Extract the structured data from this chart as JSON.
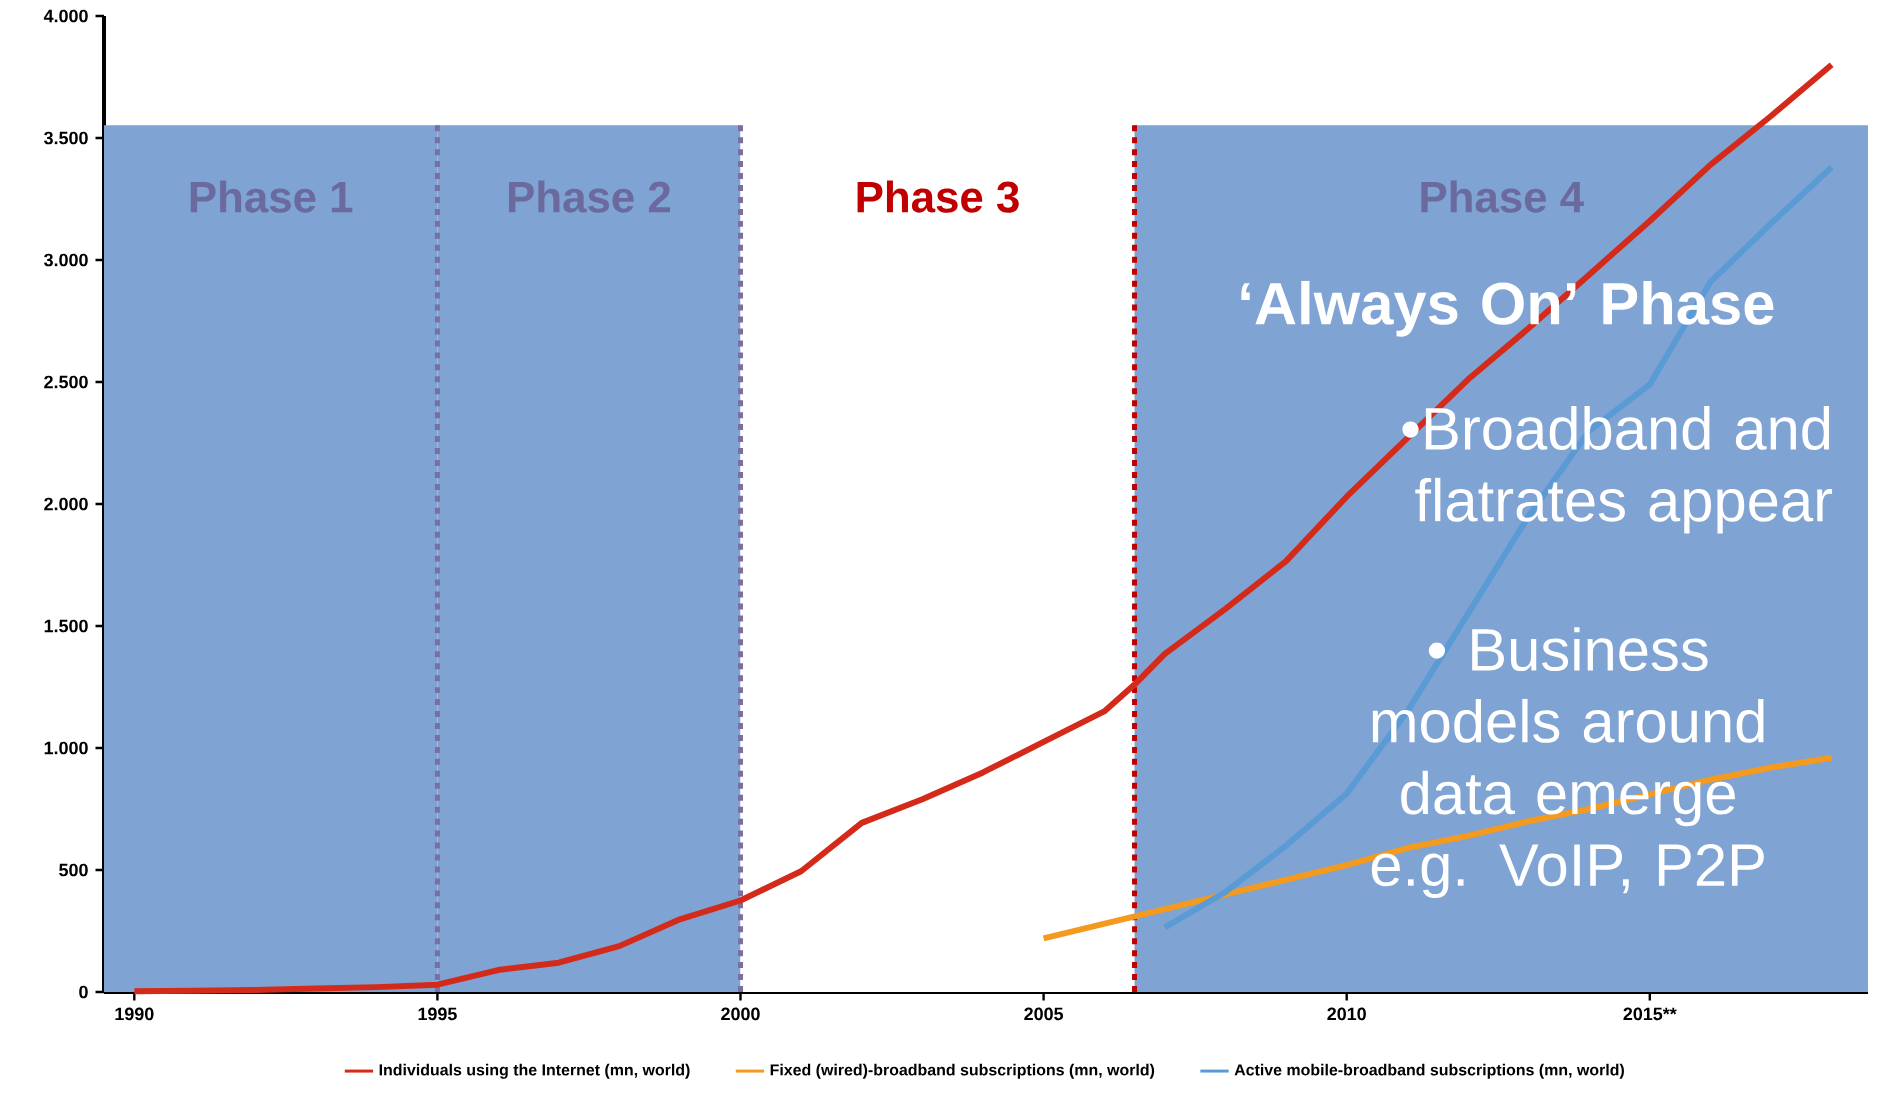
{
  "chart_data": {
    "type": "line",
    "xlim": [
      1989.5,
      2018.6
    ],
    "ylim": [
      0,
      4000
    ],
    "xticks": [
      1990,
      1995,
      2000,
      2005,
      2010,
      {
        "value": 2015,
        "label": "2015**"
      }
    ],
    "yticks": [
      {
        "value": 0,
        "label": "0"
      },
      {
        "value": 500,
        "label": "500"
      },
      {
        "value": 1000,
        "label": "1.000"
      },
      {
        "value": 1500,
        "label": "1.500"
      },
      {
        "value": 2000,
        "label": "2.000"
      },
      {
        "value": 2500,
        "label": "2.500"
      },
      {
        "value": 3000,
        "label": "3.000"
      },
      {
        "value": 3500,
        "label": "3.500"
      },
      {
        "value": 4000,
        "label": "4.000"
      }
    ],
    "legend": "bottom",
    "grid": false,
    "marker": "none",
    "line_style": "solid",
    "series": [
      {
        "name": "Individuals using the Internet (mn, world)",
        "color": "#d42a1a",
        "x": [
          1990,
          1991,
          1992,
          1993,
          1994,
          1995,
          1996,
          1997,
          1998,
          1999,
          2000,
          2001,
          2002,
          2003,
          2004,
          2005,
          2006,
          2006.5,
          2007,
          2008,
          2009,
          2010,
          2011,
          2012,
          2013,
          2014,
          2015,
          2016,
          2017,
          2018
        ],
        "values": [
          3,
          5,
          8,
          14,
          20,
          30,
          90,
          120,
          188,
          298,
          375,
          495,
          693,
          790,
          900,
          1025,
          1150,
          1260,
          1386,
          1570,
          1766,
          2030,
          2270,
          2510,
          2720,
          2940,
          3160,
          3390,
          3590,
          3800
        ]
      },
      {
        "name": "Fixed (wired)-broadband subscriptions (mn, world)",
        "color": "#f39a1f",
        "x": [
          2005,
          2006,
          2007,
          2008,
          2009,
          2010,
          2011,
          2012,
          2013,
          2014,
          2015,
          2016,
          2017,
          2018
        ],
        "values": [
          220,
          280,
          340,
          400,
          460,
          520,
          590,
          640,
          700,
          750,
          810,
          870,
          920,
          960
        ]
      },
      {
        "name": "Active mobile-broadband subscriptions (mn, world)",
        "color": "#5b9bd5",
        "x": [
          2007,
          2008,
          2009,
          2010,
          2011,
          2012,
          2013,
          2014,
          2015,
          2016,
          2017,
          2018
        ],
        "values": [
          265,
          410,
          600,
          813,
          1150,
          1550,
          1950,
          2300,
          2490,
          2910,
          3150,
          3380
        ]
      }
    ],
    "bands": [
      {
        "axis": "x",
        "from": 1989.5,
        "to": 1995,
        "label": "Phase 1",
        "color": "#7fa3d3"
      },
      {
        "axis": "x",
        "from": 1995,
        "to": 2000,
        "label": "Phase 2",
        "color": "#7fa3d3"
      },
      {
        "axis": "x",
        "from": 2000,
        "to": 2006.5,
        "label": "Phase 3",
        "color": "#ffffff"
      },
      {
        "axis": "x",
        "from": 2006.5,
        "to": 2018.6,
        "label": "Phase 4",
        "color": "#7fa3d3"
      }
    ],
    "ref_lines": [
      {
        "axis": "x",
        "value": 1995,
        "color": "#7a6fa0",
        "line_style": "dashed"
      },
      {
        "axis": "x",
        "value": 2000,
        "color": "#7a6fa0",
        "line_style": "dashed"
      },
      {
        "axis": "x",
        "value": 2006.5,
        "color": "#c00000",
        "line_style": "dashed"
      }
    ],
    "annotations": [
      "‘Always On’ Phase",
      "•Broadband and flatrates appear",
      "• Business models around data emerge e.g. VoIP, P2P"
    ]
  }
}
